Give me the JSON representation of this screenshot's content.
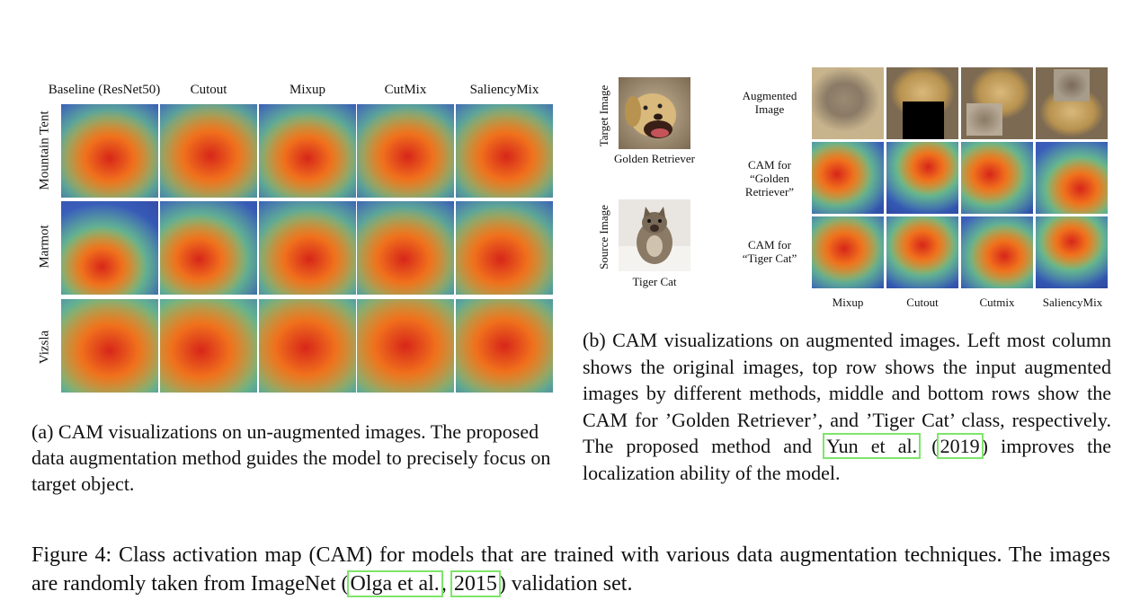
{
  "panel_a": {
    "column_headers": [
      "Baseline (ResNet50)",
      "Cutout",
      "Mixup",
      "CutMix",
      "SaliencyMix"
    ],
    "row_labels": [
      "Mountain Tent",
      "Marmot",
      "Vizsla"
    ],
    "caption": "(a) CAM visualizations on un-augmented images. The proposed data augmentation method guides the model to precisely focus on target object."
  },
  "panel_b": {
    "target_label": "Target Image",
    "target_name": "Golden Retriever",
    "source_label": "Source Image",
    "source_name": "Tiger Cat",
    "row_labels": [
      "Augmented Image",
      "CAM for “Golden Retriever”",
      "CAM for “Tiger Cat”"
    ],
    "row_label_lines": [
      [
        "Augmented",
        "Image"
      ],
      [
        "CAM for",
        "“Golden",
        "Retriever”"
      ],
      [
        "CAM for",
        "“Tiger Cat”"
      ]
    ],
    "column_footers": [
      "Mixup",
      "Cutout",
      "Cutmix",
      "SaliencyMix"
    ],
    "caption_pre": "(b) CAM visualizations on augmented images. Left most column shows the original images, top row shows the input augmented images by different methods, middle and bottom rows show the CAM for ’Golden Retriever’, and ’Tiger Cat’ class, respectively. The proposed method and ",
    "caption_cite_author": "Yun et al.",
    "caption_cite_year": "2019",
    "caption_post": " improves the localization ability of the model."
  },
  "figure_caption": {
    "pre": "Figure 4: Class activation map (CAM) for models that are trained with various data augmentation techniques. The images are randomly taken from ImageNet (",
    "cite_author": "Olga et al.",
    "cite_year": "2015",
    "post": ") validation set."
  },
  "colors": {
    "citation_box": "#7ee56b",
    "heat_hot": "#d7261a",
    "heat_warm": "#f7c21c",
    "heat_cold": "#2b3f9c"
  }
}
